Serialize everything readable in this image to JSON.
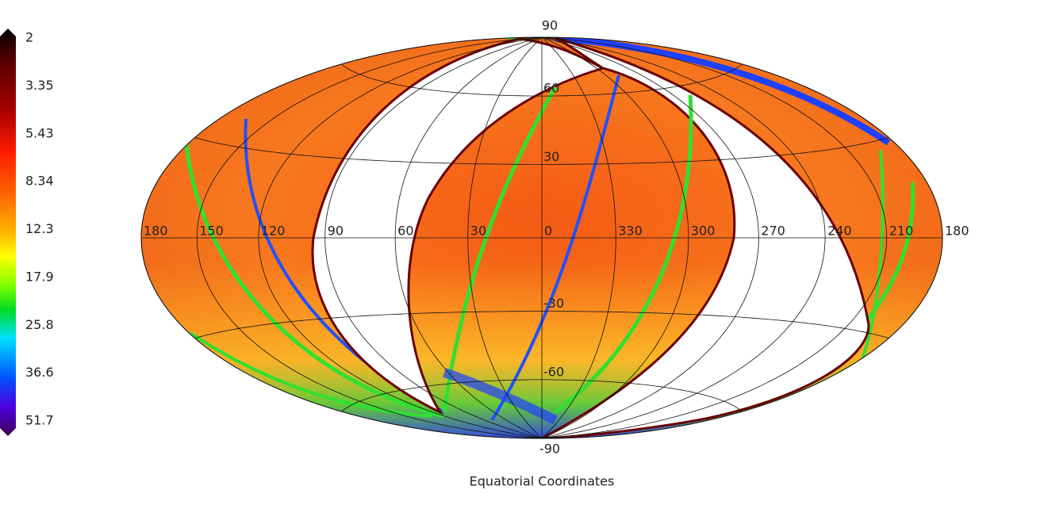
{
  "colorbar": {
    "ticks": [
      2,
      3.35,
      5.43,
      8.34,
      12.3,
      17.9,
      25.8,
      36.6,
      51.7
    ]
  },
  "map": {
    "projection": "hammer",
    "lon_ticks": [
      180,
      150,
      120,
      90,
      60,
      30,
      0,
      330,
      300,
      270,
      240,
      210,
      180
    ],
    "lat_ticks": [
      90,
      60,
      30,
      -30,
      -60,
      -90
    ],
    "title": "Equatorial Coordinates"
  }
}
